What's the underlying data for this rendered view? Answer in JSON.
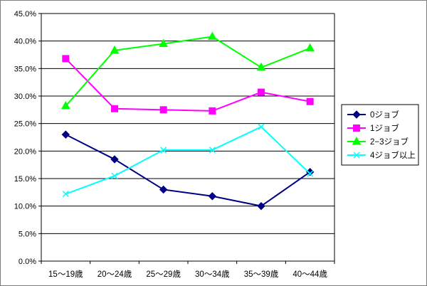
{
  "chart_data": {
    "type": "line",
    "categories": [
      "15～19歳",
      "20～24歳",
      "25～29歳",
      "30～34歳",
      "35～39歳",
      "40～44歳"
    ],
    "ylim": [
      0,
      45
    ],
    "yticks": [
      "0.0%",
      "5.0%",
      "10.0%",
      "15.0%",
      "20.0%",
      "25.0%",
      "30.0%",
      "35.0%",
      "40.0%",
      "45.0%"
    ],
    "grid": true,
    "legend_position": "right",
    "series": [
      {
        "name": "0ジョブ",
        "color": "#000080",
        "marker": "diamond",
        "values": [
          23.0,
          18.5,
          13.0,
          11.8,
          10.0,
          16.2
        ]
      },
      {
        "name": "1ジョブ",
        "color": "#ff00ff",
        "marker": "square",
        "values": [
          36.8,
          27.7,
          27.5,
          27.3,
          30.7,
          29.0
        ]
      },
      {
        "name": "2−3ジョブ",
        "color": "#00ff00",
        "marker": "triangle",
        "values": [
          28.2,
          38.3,
          39.5,
          40.8,
          35.2,
          38.7
        ]
      },
      {
        "name": "4ジョブ以上",
        "color": "#00ffff",
        "marker": "x",
        "values": [
          12.2,
          15.5,
          20.2,
          20.2,
          24.4,
          15.9
        ]
      }
    ]
  }
}
